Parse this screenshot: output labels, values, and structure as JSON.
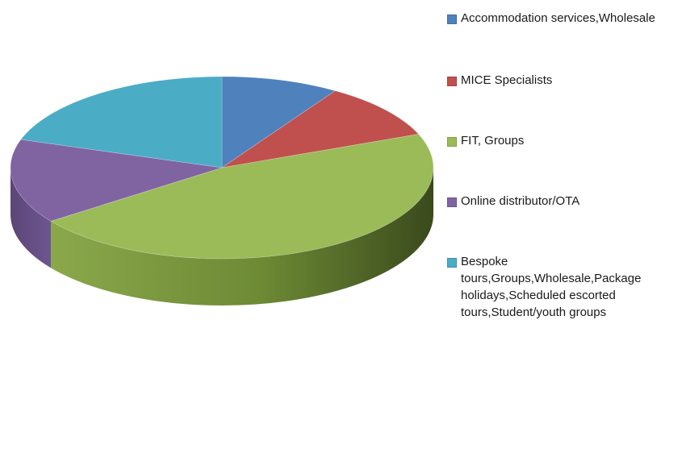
{
  "chart_data": {
    "type": "pie",
    "style": "3d",
    "legend_position": "right",
    "categories": [
      "Accommodation services,Wholesale",
      "MICE Specialists",
      "FIT, Groups",
      "Online distributor/OTA",
      "Bespoke tours,Groups,Wholesale,Package holidays,Scheduled escorted tours,Student/youth groups"
    ],
    "values": [
      9,
      10,
      46,
      15,
      20
    ],
    "colors": [
      "#4f81bd",
      "#c0504d",
      "#9bbb59",
      "#8064a2",
      "#4bacc6"
    ]
  },
  "legend": {
    "items": [
      {
        "label": "Accommodation services,Wholesale",
        "color": "#4f81bd"
      },
      {
        "label": "MICE Specialists",
        "color": "#c0504d"
      },
      {
        "label": "FIT, Groups",
        "color": "#9bbb59"
      },
      {
        "label": "Online distributor/OTA",
        "color": "#8064a2"
      },
      {
        "label": "Bespoke tours,Groups,Wholesale,Package holidays,Scheduled escorted tours,Student/youth groups",
        "color": "#4bacc6"
      }
    ]
  }
}
